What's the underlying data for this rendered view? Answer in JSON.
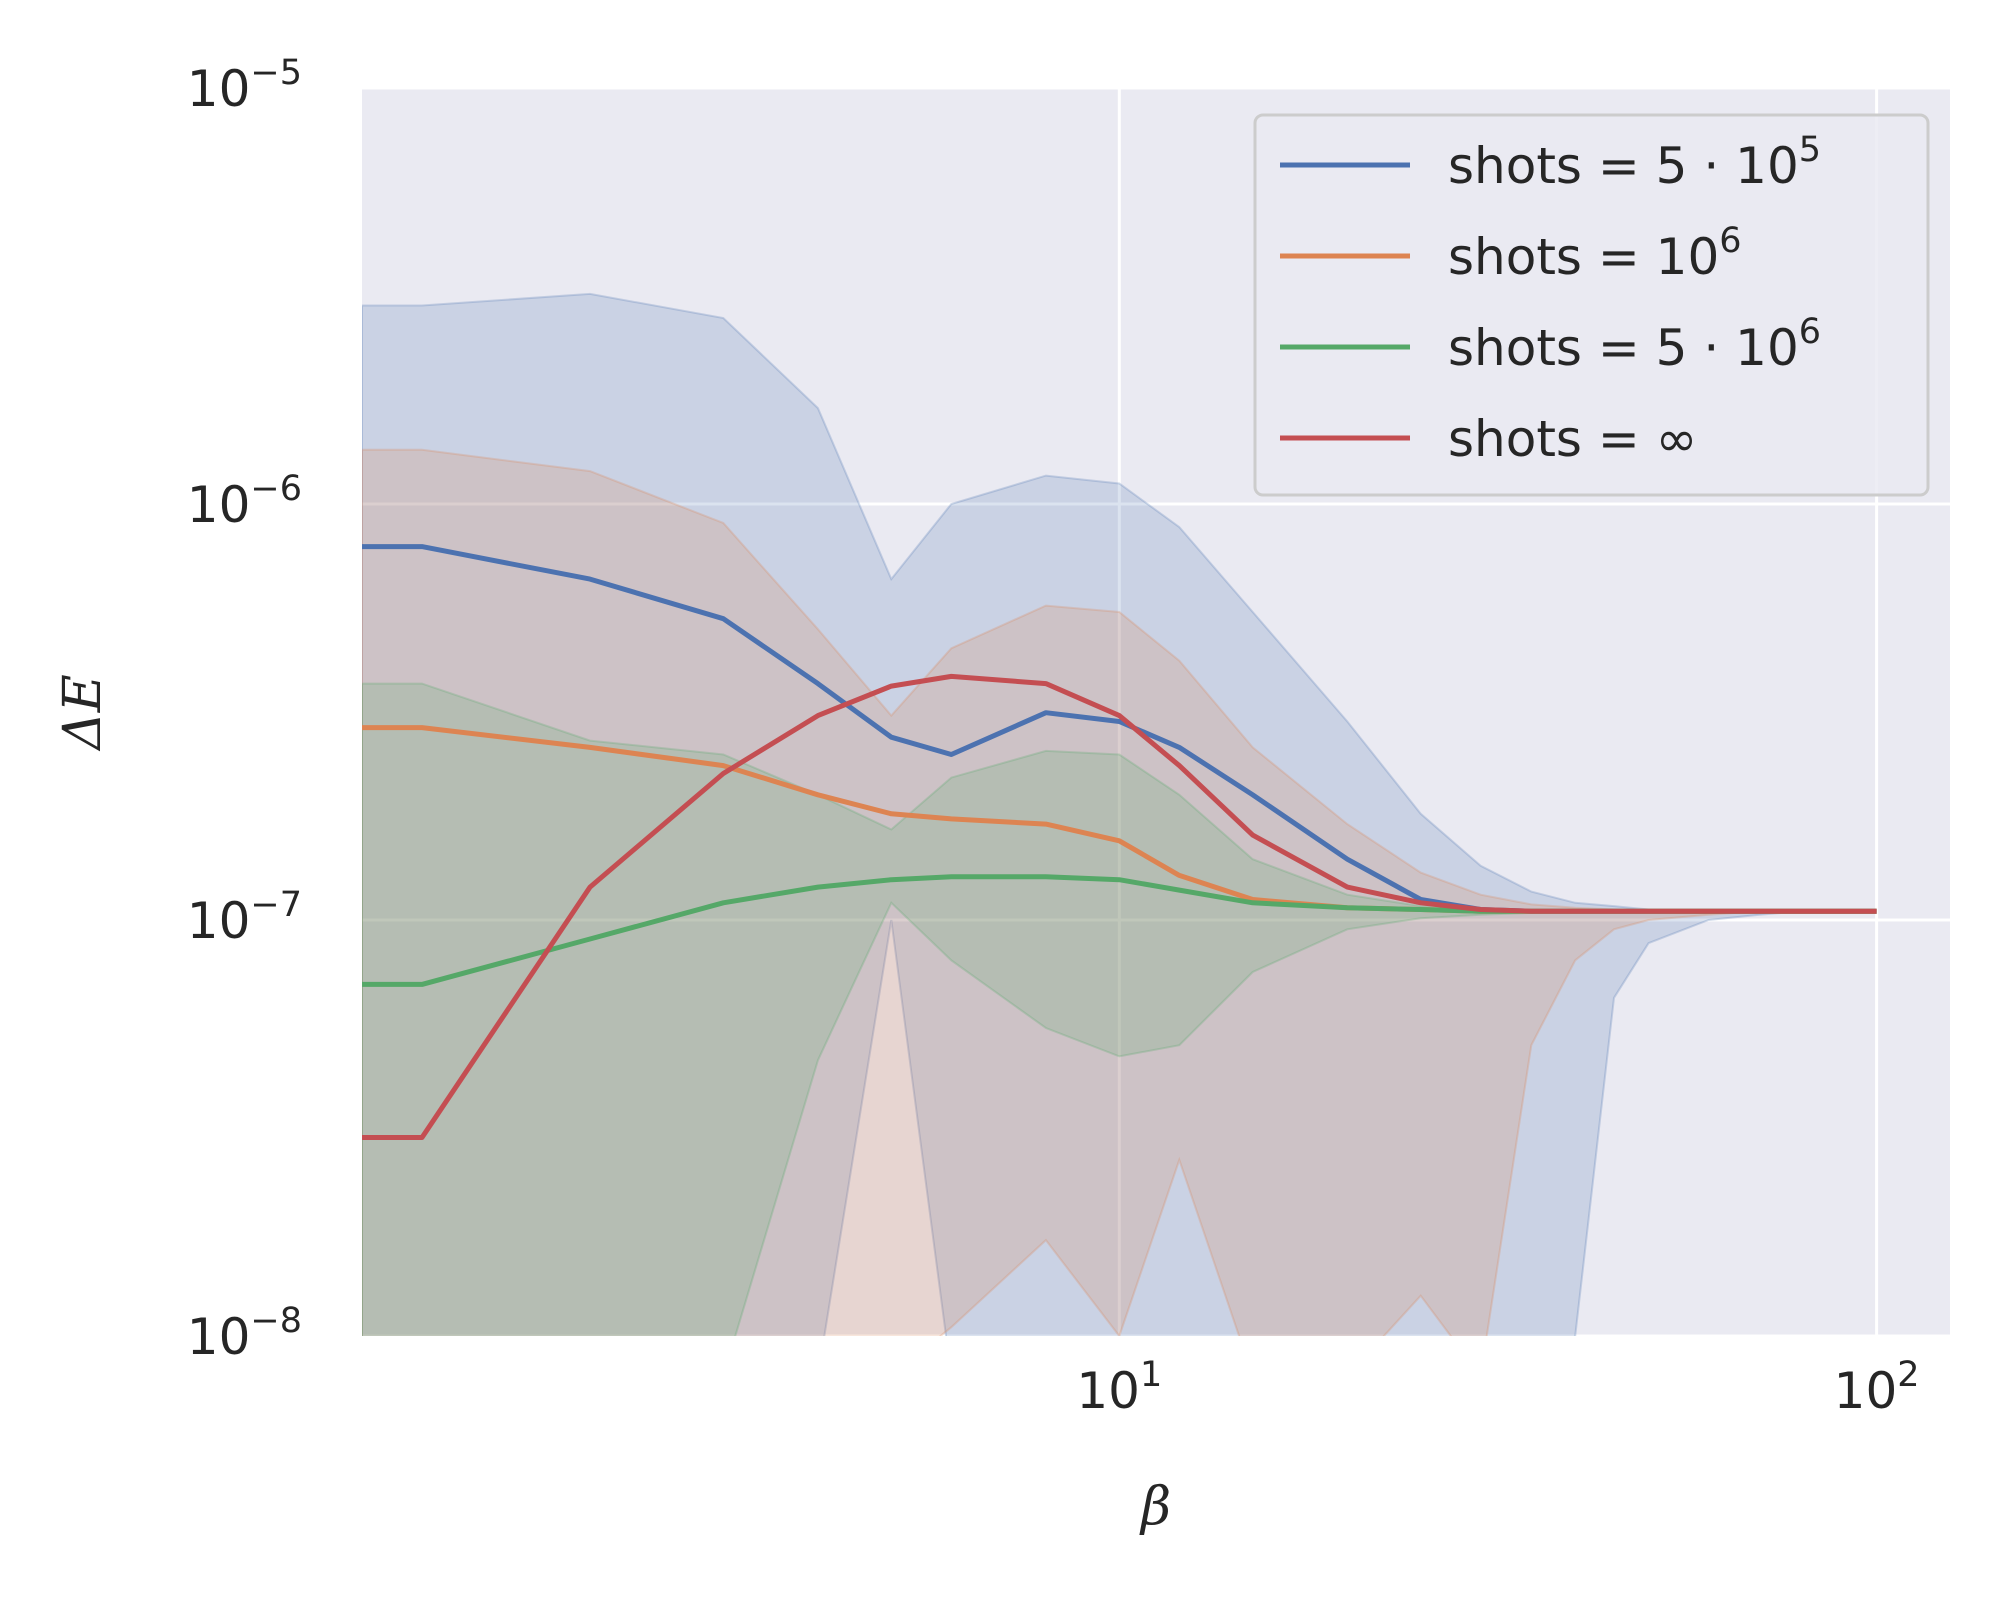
{
  "chart_data": {
    "type": "line",
    "title": "",
    "xlabel": "β",
    "ylabel": "ΔE",
    "xscale": "log",
    "yscale": "log",
    "xlim": [
      1.0,
      125
    ],
    "ylim": [
      1e-08,
      1e-05
    ],
    "grid": true,
    "legend_position": "top-right",
    "x_ticks": [
      {
        "value": 10,
        "base": "10",
        "exp": "1"
      },
      {
        "value": 100,
        "base": "10",
        "exp": "2"
      }
    ],
    "y_ticks": [
      {
        "value": 1e-08,
        "base": "10",
        "exp": "−8"
      },
      {
        "value": 1e-07,
        "base": "10",
        "exp": "−7"
      },
      {
        "value": 1e-06,
        "base": "10",
        "exp": "−6"
      },
      {
        "value": 1e-05,
        "base": "10",
        "exp": "−5"
      }
    ],
    "series": [
      {
        "name": "shots = 5·10⁵",
        "legend_base": "shots = 5 · 10",
        "legend_exp": "5",
        "color": "#4c72b0",
        "x": [
          1.0,
          1.2,
          2.0,
          3.0,
          4.0,
          5.0,
          6.0,
          8.0,
          10.0,
          12.0,
          15.0,
          20.0,
          25.0,
          30.0,
          35.0,
          40.0,
          45.0,
          50.0,
          60.0,
          70.0,
          80.0,
          100.0
        ],
        "y": [
          7.9e-07,
          7.9e-07,
          6.6e-07,
          5.3e-07,
          3.7e-07,
          2.75e-07,
          2.5e-07,
          3.15e-07,
          3e-07,
          2.6e-07,
          2e-07,
          1.4e-07,
          1.12e-07,
          1.06e-07,
          1.05e-07,
          1.05e-07,
          1.05e-07,
          1.05e-07,
          1.05e-07,
          1.05e-07,
          1.05e-07,
          1.05e-07
        ],
        "lower": [
          1e-09,
          1e-09,
          1e-09,
          1e-09,
          1e-09,
          1e-07,
          1e-09,
          1e-09,
          1e-09,
          1e-09,
          1e-09,
          1e-09,
          1e-09,
          1e-09,
          1e-09,
          1e-08,
          6.5e-08,
          8.8e-08,
          1e-07,
          1.03e-07,
          1.05e-07,
          1.05e-07
        ],
        "upper": [
          3e-06,
          3e-06,
          3.2e-06,
          2.8e-06,
          1.7e-06,
          6.6e-07,
          1e-06,
          1.17e-06,
          1.12e-06,
          8.8e-07,
          5.5e-07,
          3e-07,
          1.8e-07,
          1.35e-07,
          1.17e-07,
          1.1e-07,
          1.08e-07,
          1.06e-07,
          1.05e-07,
          1.05e-07,
          1.05e-07,
          1.05e-07
        ]
      },
      {
        "name": "shots = 10⁶",
        "legend_base": "shots = 10",
        "legend_exp": "6",
        "color": "#dd8452",
        "x": [
          1.0,
          1.2,
          2.0,
          3.0,
          4.0,
          5.0,
          6.0,
          8.0,
          10.0,
          12.0,
          15.0,
          20.0,
          25.0,
          30.0,
          35.0,
          40.0,
          45.0,
          50.0,
          60.0,
          70.0,
          80.0,
          100.0
        ],
        "y": [
          2.9e-07,
          2.9e-07,
          2.6e-07,
          2.35e-07,
          2e-07,
          1.8e-07,
          1.75e-07,
          1.7e-07,
          1.55e-07,
          1.28e-07,
          1.12e-07,
          1.07e-07,
          1.06e-07,
          1.05e-07,
          1.05e-07,
          1.05e-07,
          1.05e-07,
          1.05e-07,
          1.05e-07,
          1.05e-07,
          1.05e-07,
          1.05e-07
        ],
        "lower": [
          1e-09,
          1e-09,
          1e-09,
          1e-09,
          1e-09,
          1e-09,
          1.05e-08,
          1.7e-08,
          1e-08,
          2.65e-08,
          1e-09,
          1e-09,
          1.25e-08,
          1e-09,
          5e-08,
          8e-08,
          9.5e-08,
          1e-07,
          1.03e-07,
          1.05e-07,
          1.05e-07,
          1.05e-07
        ],
        "upper": [
          1.35e-06,
          1.35e-06,
          1.2e-06,
          9e-07,
          5e-07,
          3.1e-07,
          4.5e-07,
          5.7e-07,
          5.5e-07,
          4.2e-07,
          2.6e-07,
          1.7e-07,
          1.3e-07,
          1.15e-07,
          1.09e-07,
          1.07e-07,
          1.06e-07,
          1.05e-07,
          1.05e-07,
          1.05e-07,
          1.05e-07,
          1.05e-07
        ]
      },
      {
        "name": "shots = 5·10⁶",
        "legend_base": "shots = 5 · 10",
        "legend_exp": "6",
        "color": "#55a868",
        "x": [
          1.0,
          1.2,
          2.0,
          3.0,
          4.0,
          5.0,
          6.0,
          8.0,
          10.0,
          12.0,
          15.0,
          20.0,
          25.0,
          30.0,
          35.0,
          40.0,
          45.0,
          50.0,
          60.0,
          70.0,
          80.0,
          100.0
        ],
        "y": [
          7e-08,
          7e-08,
          9e-08,
          1.1e-07,
          1.2e-07,
          1.25e-07,
          1.27e-07,
          1.27e-07,
          1.25e-07,
          1.18e-07,
          1.1e-07,
          1.07e-07,
          1.06e-07,
          1.05e-07,
          1.05e-07,
          1.05e-07,
          1.05e-07,
          1.05e-07,
          1.05e-07,
          1.05e-07,
          1.05e-07,
          1.05e-07
        ],
        "lower": [
          1e-09,
          1e-09,
          1e-09,
          1e-09,
          4.6e-08,
          1.1e-07,
          8e-08,
          5.5e-08,
          4.7e-08,
          5e-08,
          7.5e-08,
          9.5e-08,
          1.01e-07,
          1.03e-07,
          1.04e-07,
          1.05e-07,
          1.05e-07,
          1.05e-07,
          1.05e-07,
          1.05e-07,
          1.05e-07,
          1.05e-07
        ],
        "upper": [
          3.7e-07,
          3.7e-07,
          2.7e-07,
          2.5e-07,
          2e-07,
          1.65e-07,
          2.2e-07,
          2.55e-07,
          2.5e-07,
          2e-07,
          1.4e-07,
          1.15e-07,
          1.08e-07,
          1.06e-07,
          1.05e-07,
          1.05e-07,
          1.05e-07,
          1.05e-07,
          1.05e-07,
          1.05e-07,
          1.05e-07,
          1.05e-07
        ]
      },
      {
        "name": "shots = ∞",
        "legend_base": "shots = ∞",
        "legend_exp": "",
        "color": "#c44e52",
        "x": [
          1.0,
          1.2,
          2.0,
          3.0,
          4.0,
          5.0,
          6.0,
          8.0,
          10.0,
          12.0,
          15.0,
          20.0,
          25.0,
          30.0,
          35.0,
          40.0,
          45.0,
          50.0,
          60.0,
          70.0,
          80.0,
          100.0
        ],
        "y": [
          3e-08,
          3e-08,
          1.2e-07,
          2.25e-07,
          3.1e-07,
          3.65e-07,
          3.85e-07,
          3.7e-07,
          3.1e-07,
          2.35e-07,
          1.6e-07,
          1.2e-07,
          1.1e-07,
          1.06e-07,
          1.05e-07,
          1.05e-07,
          1.05e-07,
          1.05e-07,
          1.05e-07,
          1.05e-07,
          1.05e-07,
          1.05e-07
        ]
      }
    ],
    "background_color": "#eaeaf2"
  }
}
